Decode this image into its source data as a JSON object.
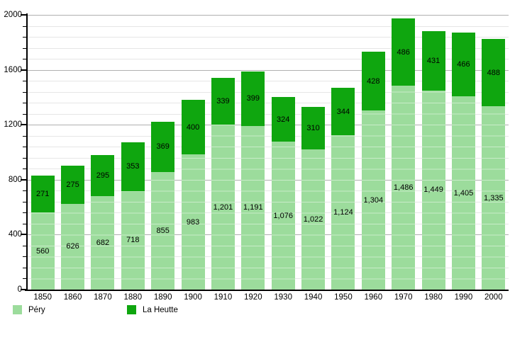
{
  "chart_data": {
    "type": "bar",
    "stacked": true,
    "title": "",
    "xlabel": "",
    "ylabel": "",
    "categories": [
      "1850",
      "1860",
      "1870",
      "1880",
      "1890",
      "1900",
      "1910",
      "1920",
      "1930",
      "1940",
      "1950",
      "1960",
      "1970",
      "1980",
      "1990",
      "2000"
    ],
    "series": [
      {
        "name": "Péry",
        "color": "#9cdc9c",
        "values": [
          560,
          626,
          682,
          718,
          855,
          983,
          1201,
          1191,
          1076,
          1022,
          1124,
          1304,
          1486,
          1449,
          1405,
          1335
        ],
        "labels": [
          "560",
          "626",
          "682",
          "718",
          "855",
          "983",
          "1,201",
          "1,191",
          "1,076",
          "1,022",
          "1,124",
          "1,304",
          "1,486",
          "1,449",
          "1,405",
          "1,335"
        ]
      },
      {
        "name": "La Heutte",
        "color": "#0fa60f",
        "values": [
          271,
          275,
          295,
          353,
          369,
          400,
          339,
          399,
          324,
          310,
          344,
          428,
          486,
          431,
          466,
          488
        ],
        "labels": [
          "271",
          "275",
          "295",
          "353",
          "369",
          "400",
          "339",
          "399",
          "324",
          "310",
          "344",
          "428",
          "486",
          "431",
          "466",
          "488"
        ]
      }
    ],
    "ylim": [
      0,
      2000
    ],
    "yticks": {
      "values": [
        0,
        400,
        800,
        1200,
        1600,
        2000
      ],
      "labels": [
        "0",
        "400",
        "800",
        "1200",
        "1600",
        "2000"
      ],
      "minor_step": 80
    },
    "grid": "horizontal-major-and-minor",
    "legend_position": "bottom-left"
  },
  "colors": {
    "background": "#ffffff",
    "axis": "#000000",
    "grid_major": "#b0b0b0",
    "grid_minor": "#e6e6e6",
    "label_text": "#000000"
  }
}
